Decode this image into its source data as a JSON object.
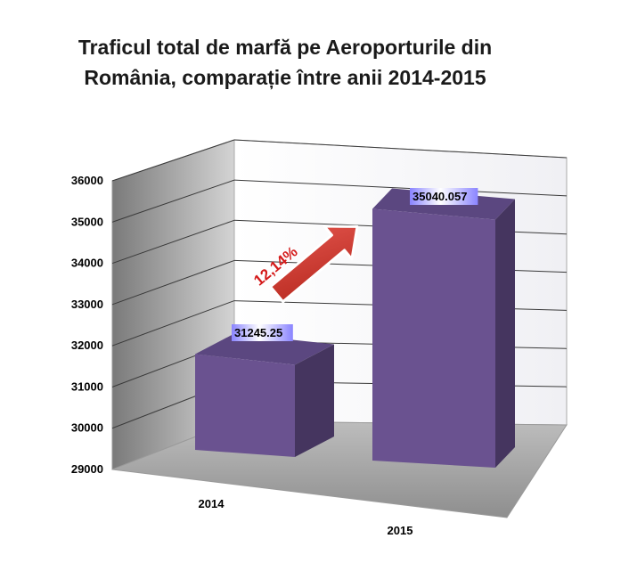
{
  "chart_data": {
    "type": "bar",
    "title_lines": [
      "Traficul total de marfă pe Aeroporturile din",
      "România, comparație între anii 2014-2015"
    ],
    "categories": [
      "2014",
      "2015"
    ],
    "values": [
      31245.25,
      35040.057
    ],
    "value_labels": [
      "31245.25",
      "35040.057"
    ],
    "ylim": [
      29000,
      36000
    ],
    "yticks": [
      "29000",
      "30000",
      "31000",
      "32000",
      "33000",
      "34000",
      "35000",
      "36000"
    ],
    "grid": true,
    "legend": "none",
    "bar_color": "#6a5290",
    "annotation": {
      "text": "12,14%",
      "color": "#d41a1a"
    }
  }
}
